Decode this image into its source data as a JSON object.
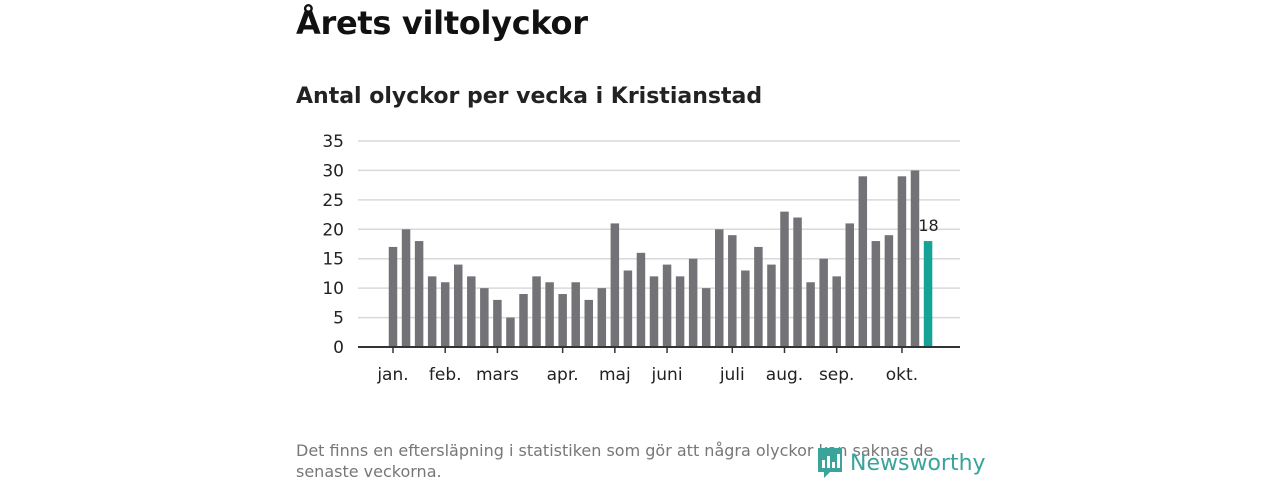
{
  "header": {
    "title": "Årets viltolyckor"
  },
  "chart_data": {
    "type": "bar",
    "title": "Antal olyckor per vecka i Kristianstad",
    "xlabel": "",
    "ylabel": "",
    "ylim": [
      0,
      35
    ],
    "yticks": [
      0,
      5,
      10,
      15,
      20,
      25,
      30,
      35
    ],
    "grid": true,
    "values": [
      17,
      20,
      18,
      12,
      11,
      14,
      12,
      10,
      8,
      5,
      9,
      12,
      11,
      9,
      11,
      8,
      10,
      21,
      13,
      16,
      12,
      14,
      12,
      15,
      10,
      20,
      19,
      13,
      17,
      14,
      23,
      22,
      11,
      15,
      12,
      21,
      29,
      18,
      19,
      29,
      30,
      18
    ],
    "highlight_index": 41,
    "highlight_label": "18",
    "month_ticks": [
      {
        "label": "jan.",
        "week_index": 0
      },
      {
        "label": "feb.",
        "week_index": 4
      },
      {
        "label": "mars",
        "week_index": 8
      },
      {
        "label": "apr.",
        "week_index": 13
      },
      {
        "label": "maj",
        "week_index": 17
      },
      {
        "label": "juni",
        "week_index": 21
      },
      {
        "label": "juli",
        "week_index": 26
      },
      {
        "label": "aug.",
        "week_index": 30
      },
      {
        "label": "sep.",
        "week_index": 34
      },
      {
        "label": "okt.",
        "week_index": 39
      }
    ],
    "colors": {
      "bar": "#737277",
      "highlight": "#14a396",
      "grid": "#d9d9d9",
      "axis": "#333333"
    }
  },
  "footer": {
    "note": "Det finns en eftersläpning i statistiken som gör att några olyckor kan saknas de senaste veckorna.",
    "brand": "Newsworthy",
    "brand_icon": "newsworthy-logo-icon",
    "brand_color": "#3aa39a"
  }
}
